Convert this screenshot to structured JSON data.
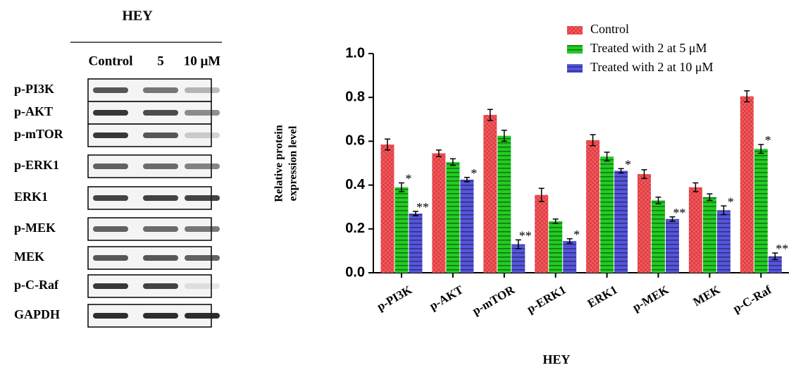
{
  "blot": {
    "title": "HEY",
    "columns": [
      "Control",
      "5",
      "10 μM"
    ],
    "rows": [
      "p-PI3K",
      "p-AKT",
      "p-mTOR",
      "p-ERK1",
      "ERK1",
      "p-MEK",
      "MEK",
      "p-C-Raf",
      "GAPDH"
    ]
  },
  "chart_data": {
    "type": "bar",
    "ylabel": [
      "Relative protein",
      "expression level"
    ],
    "xlabel": "HEY",
    "categories": [
      "p-PI3K",
      "p-AKT",
      "p-mTOR",
      "p-ERK1",
      "ERK1",
      "p-MEK",
      "MEK",
      "p-C-Raf"
    ],
    "series": [
      {
        "name": "Control",
        "color": "#f05a5a",
        "values": [
          0.585,
          0.545,
          0.72,
          0.355,
          0.605,
          0.45,
          0.39,
          0.805
        ],
        "errors": [
          0.025,
          0.015,
          0.025,
          0.03,
          0.025,
          0.02,
          0.02,
          0.025
        ],
        "significance": [
          null,
          null,
          null,
          null,
          null,
          null,
          null,
          null
        ]
      },
      {
        "name": "Treated with 2 at 5 μM",
        "color": "#22cc22",
        "values": [
          0.39,
          0.505,
          0.625,
          0.235,
          0.53,
          0.33,
          0.345,
          0.565
        ],
        "errors": [
          0.02,
          0.015,
          0.025,
          0.01,
          0.02,
          0.015,
          0.015,
          0.02
        ],
        "significance": [
          "*",
          null,
          null,
          null,
          null,
          null,
          null,
          "*"
        ]
      },
      {
        "name": "Treated with 2 at 10 μM",
        "color": "#5555dd",
        "values": [
          0.27,
          0.425,
          0.13,
          0.145,
          0.465,
          0.245,
          0.285,
          0.075
        ],
        "errors": [
          0.01,
          0.01,
          0.02,
          0.01,
          0.01,
          0.01,
          0.02,
          0.015
        ],
        "significance": [
          "**",
          "*",
          "**",
          "*",
          "*",
          "**",
          "*",
          "**"
        ]
      }
    ],
    "ylim": [
      0,
      1.0
    ],
    "yticks": [
      {
        "value": 0,
        "label": "0.0"
      },
      0.2,
      0.4,
      0.6,
      0.8,
      {
        "value": 1.0,
        "label": "1.0"
      }
    ],
    "legend": "top-right"
  }
}
